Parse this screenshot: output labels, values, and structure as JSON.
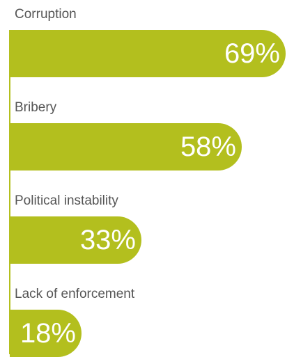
{
  "chart_data": {
    "type": "bar",
    "orientation": "horizontal",
    "categories": [
      "Corruption",
      "Bribery",
      "Political instability",
      "Lack of enforcement"
    ],
    "values": [
      69,
      58,
      33,
      18
    ],
    "value_labels": [
      "69%",
      "58%",
      "33%",
      "18%"
    ],
    "unit": "%",
    "xlim": [
      0,
      69
    ],
    "grid": false,
    "legend": "none",
    "bar_color": "#b3bf1e",
    "value_label_color": "#ffffff",
    "label_color": "#555555"
  }
}
